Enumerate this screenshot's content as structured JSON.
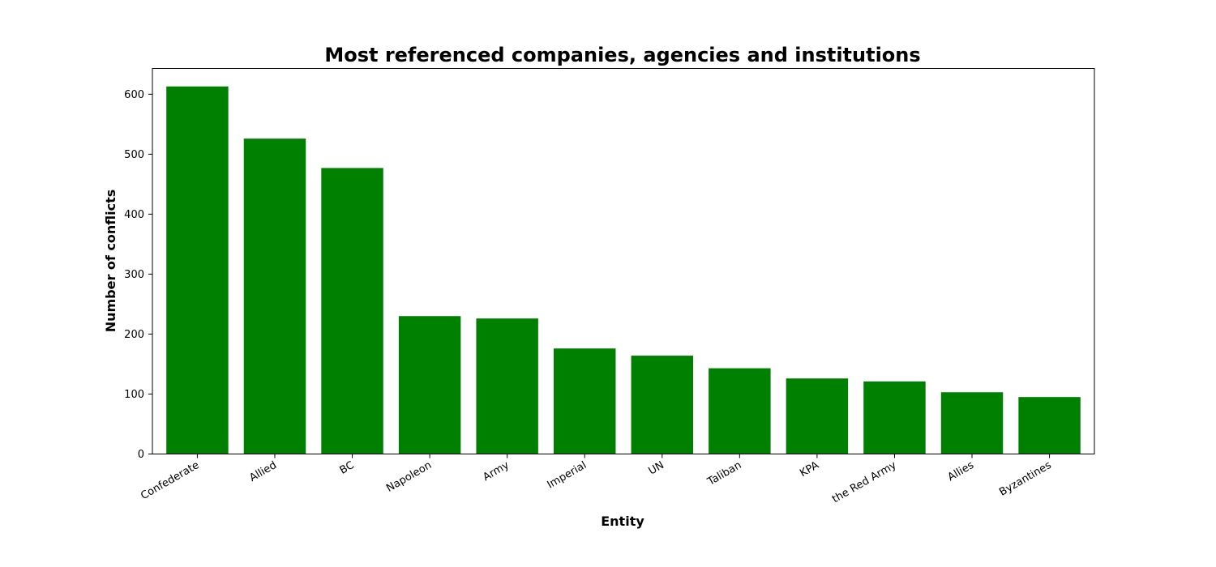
{
  "chart_data": {
    "type": "bar",
    "title": "Most referenced companies, agencies and institutions",
    "xlabel": "Entity",
    "ylabel": "Number of conflicts",
    "categories": [
      "Confederate",
      "Allied",
      "BC",
      "Napoleon",
      "Army",
      "Imperial",
      "UN",
      "Taliban",
      "KPA",
      "the Red Army",
      "Allies",
      "Byzantines"
    ],
    "values": [
      613,
      526,
      477,
      230,
      226,
      176,
      164,
      143,
      126,
      121,
      103,
      95
    ],
    "ylim": [
      0,
      643
    ],
    "yticks": [
      0,
      100,
      200,
      300,
      400,
      500,
      600
    ],
    "grid": false,
    "bar_color": "#008000"
  }
}
